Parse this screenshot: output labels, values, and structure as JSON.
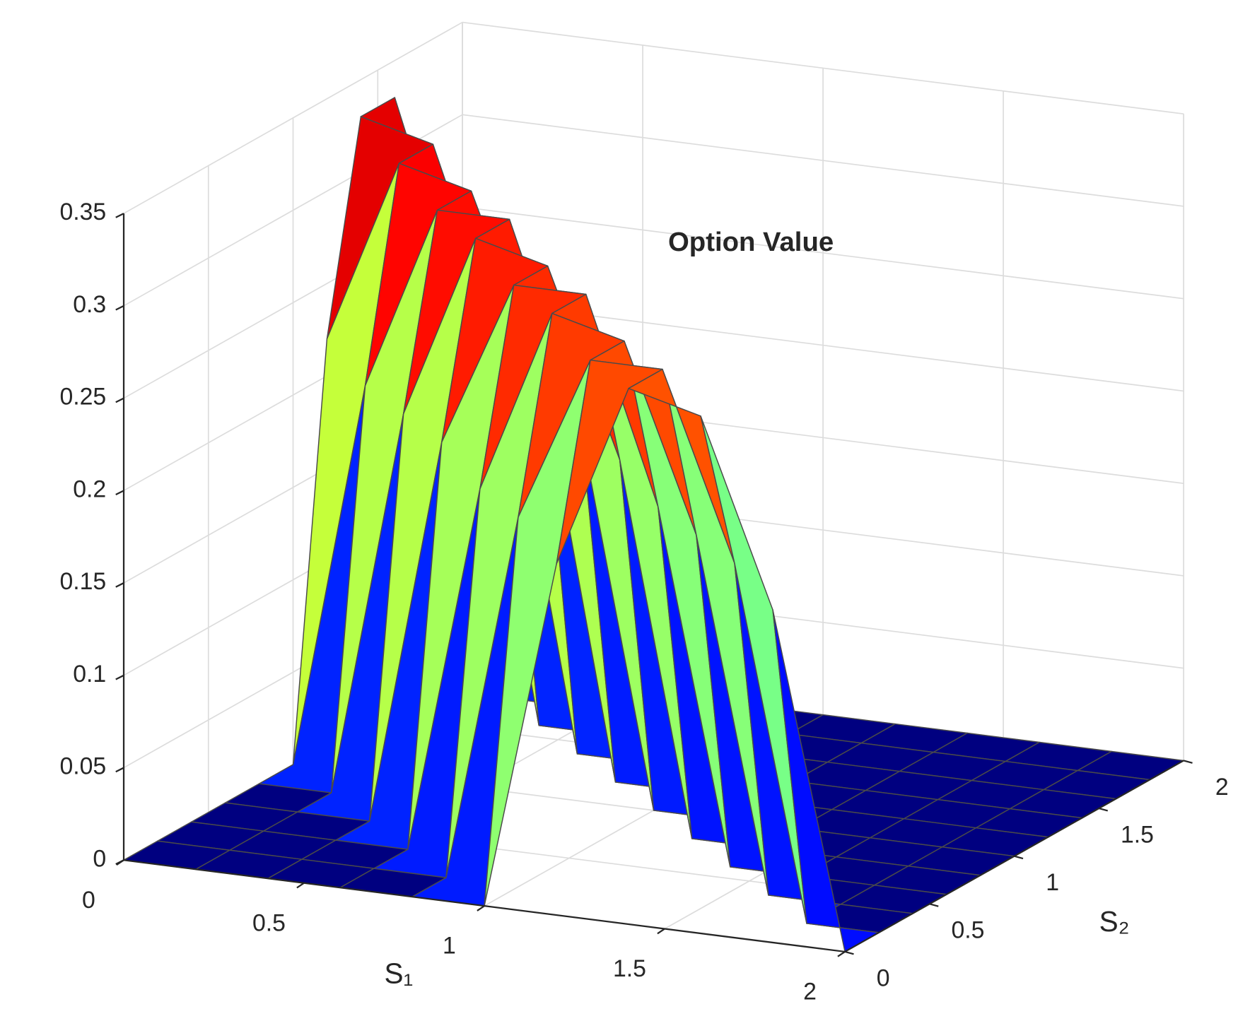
{
  "chart_data": {
    "type": "surface",
    "title": "Option Value",
    "xlabel": "S₁",
    "ylabel": "S₂",
    "x": [
      0,
      0.2,
      0.4,
      0.6,
      0.8,
      1,
      1.2,
      1.4,
      1.6,
      1.8,
      2
    ],
    "y": [
      0,
      0.2,
      0.4,
      0.6,
      0.8,
      1,
      1.2,
      1.4,
      1.6,
      1.8,
      2
    ],
    "z": [
      [
        0,
        0,
        0,
        0,
        0,
        0,
        0.19,
        0.29,
        0.28,
        0.18,
        0
      ],
      [
        0,
        0,
        0,
        0,
        0,
        0.2,
        0.29,
        0.29,
        0.19,
        0,
        0
      ],
      [
        0,
        0,
        0,
        0,
        0.2,
        0.3,
        0.29,
        0.19,
        0,
        0,
        0
      ],
      [
        0,
        0,
        0,
        0.21,
        0.3,
        0.3,
        0.19,
        0,
        0,
        0,
        0
      ],
      [
        0,
        0,
        0.21,
        0.31,
        0.3,
        0.2,
        0,
        0,
        0,
        0,
        0
      ],
      [
        0,
        0.21,
        0.31,
        0.31,
        0.2,
        0,
        0,
        0,
        0,
        0,
        0
      ],
      [
        0.22,
        0.32,
        0.31,
        0.21,
        0,
        0,
        0,
        0,
        0,
        0,
        0
      ],
      [
        0.33,
        0.32,
        0.21,
        0,
        0,
        0,
        0,
        0,
        0,
        0,
        0
      ],
      [
        0.33,
        0.21,
        0,
        0,
        0,
        0,
        0,
        0,
        0,
        0,
        0
      ],
      [
        0.22,
        0,
        0,
        0,
        0,
        0,
        0,
        0,
        0,
        0,
        0
      ],
      [
        0,
        0,
        0,
        0,
        0,
        0,
        0,
        0,
        0,
        0,
        0
      ]
    ],
    "xlim": [
      0,
      2
    ],
    "ylim": [
      0,
      2
    ],
    "zlim": [
      0,
      0.35
    ],
    "xticks": [
      0,
      0.5,
      1,
      1.5,
      2
    ],
    "yticks": [
      0,
      0.5,
      1,
      1.5,
      2
    ],
    "zticks": [
      0,
      0.05,
      0.1,
      0.15,
      0.2,
      0.25,
      0.3,
      0.35
    ],
    "grid": true,
    "colormap": "jet",
    "edge_color": "#4a4a4a"
  }
}
